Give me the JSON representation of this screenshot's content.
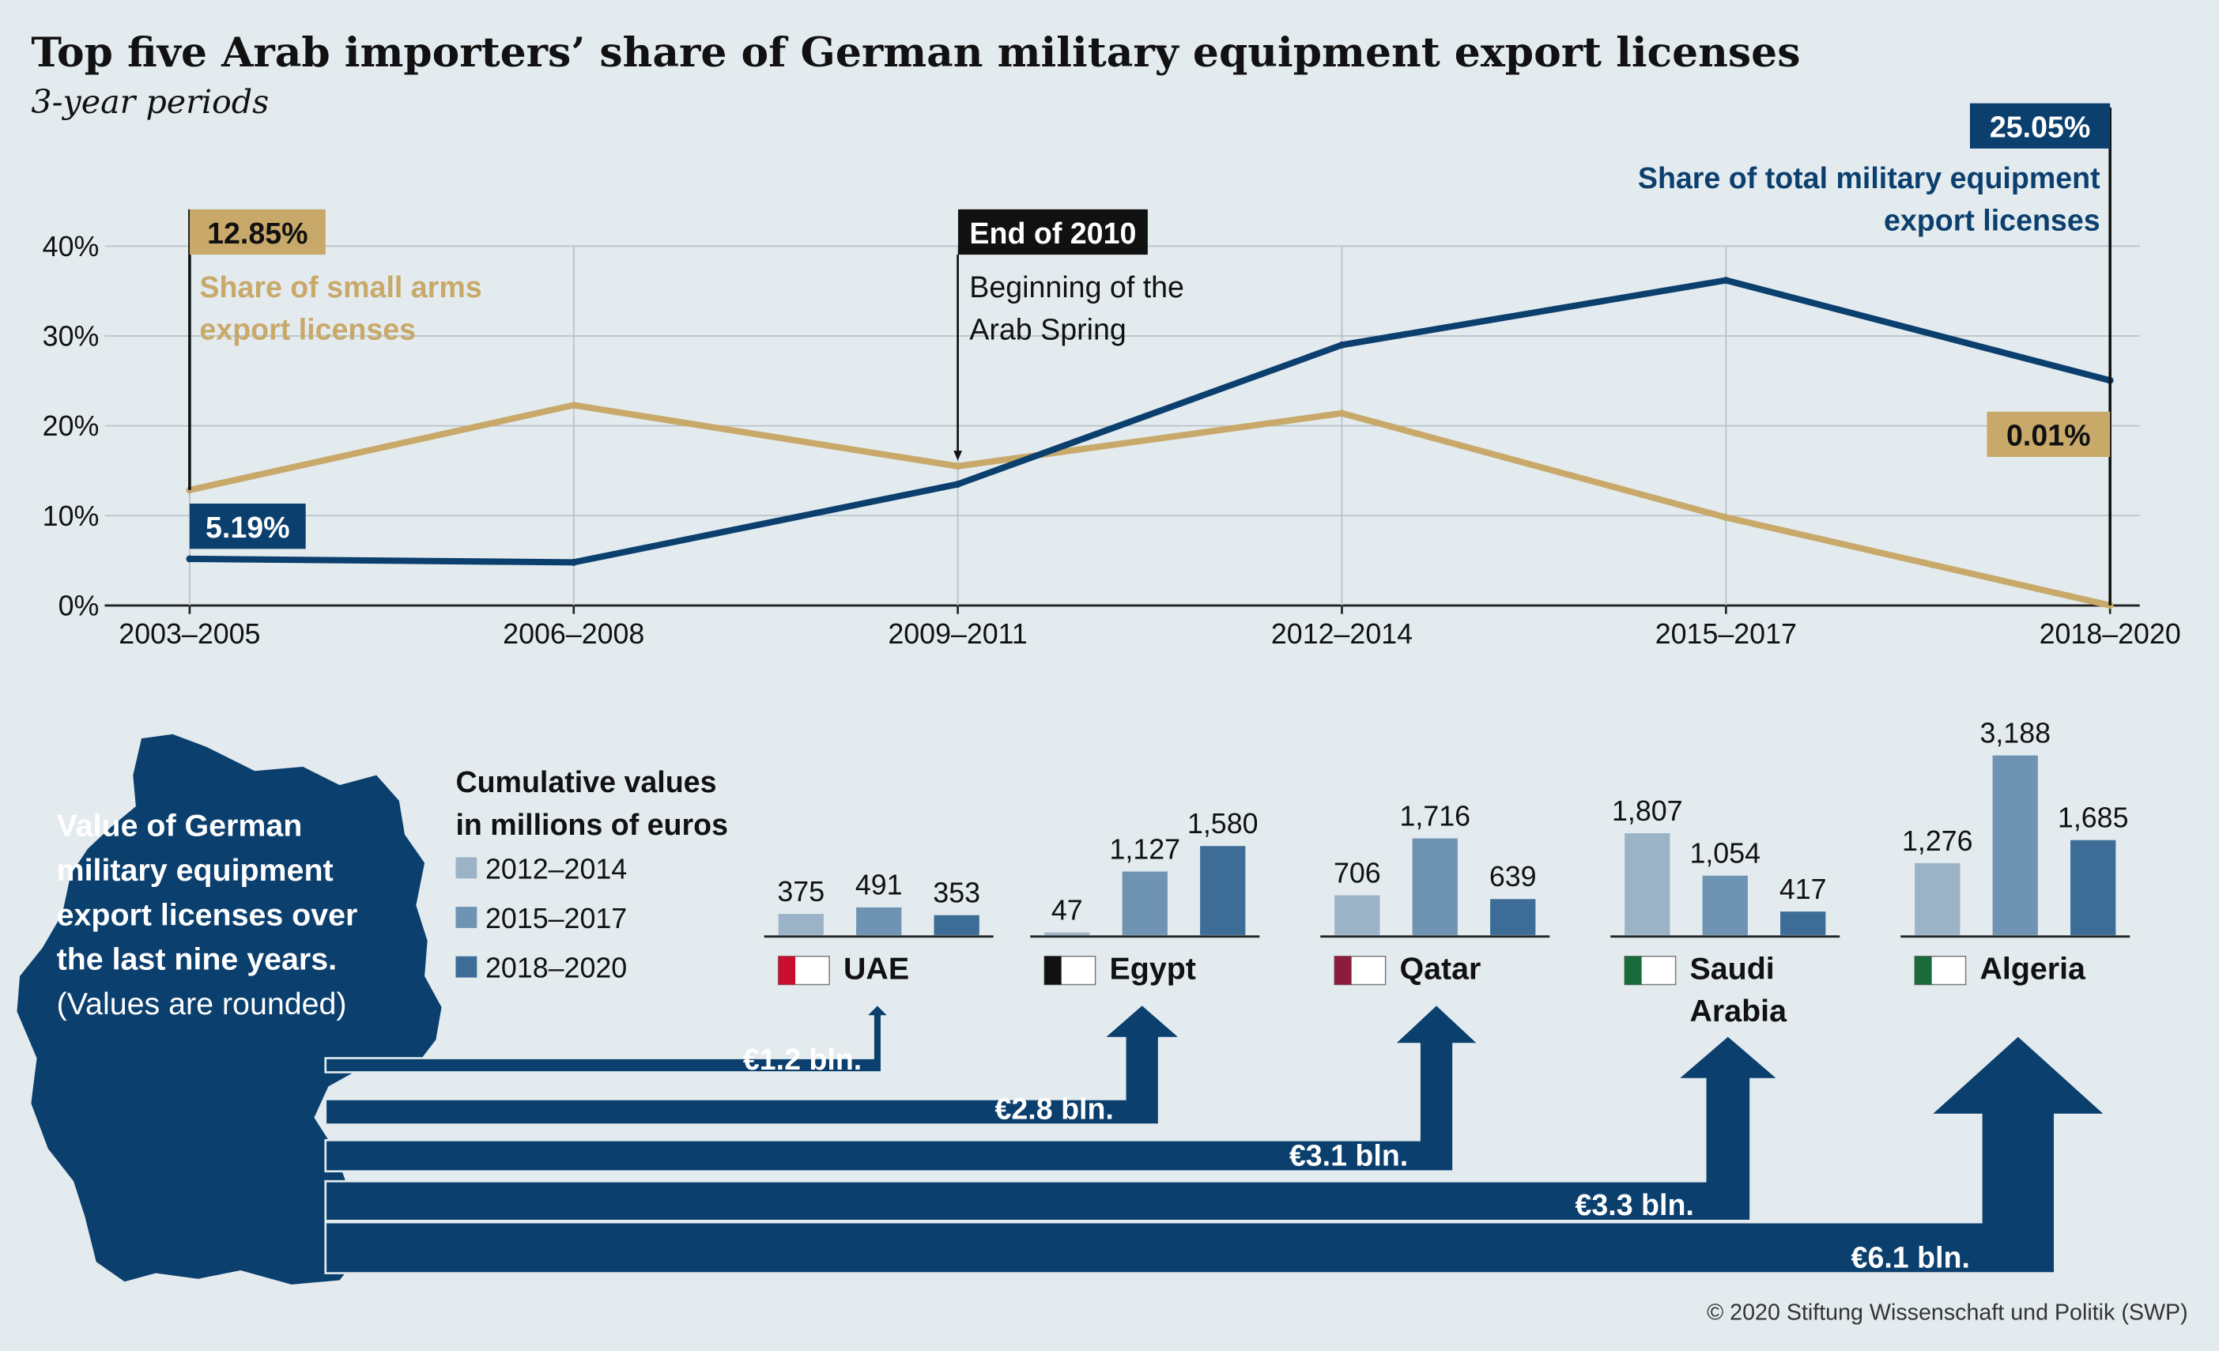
{
  "title": "Top five Arab importers’ share of German military equipment export licenses",
  "subtitle": "3-year periods",
  "colors": {
    "background": "#e3ebef",
    "navy": "#0b3f6e",
    "gold": "#c8a96a",
    "c2012": "#9cb3c7",
    "c2015": "#6f93b2",
    "c2018": "#3d6d96"
  },
  "chart_data": [
    {
      "type": "line",
      "categories": [
        "2003–2005",
        "2006–2008",
        "2009–2011",
        "2012–2014",
        "2015–2017",
        "2018–2020"
      ],
      "ylim": [
        0,
        40
      ],
      "yticks": [
        "0%",
        "10%",
        "20%",
        "30%",
        "40%"
      ],
      "grid": true,
      "series": [
        {
          "name": "Share of total military equipment export licenses",
          "values": [
            5.19,
            4.8,
            13.5,
            29.0,
            36.2,
            25.05
          ]
        },
        {
          "name": "Share of small arms export licenses",
          "values": [
            12.85,
            22.3,
            15.5,
            21.4,
            9.8,
            0.01
          ]
        }
      ],
      "annotations": {
        "total_start": "5.19%",
        "total_end": "25.05%",
        "total_label": "Share of total military equipment export licenses",
        "small_start": "12.85%",
        "small_end": "0.01%",
        "small_label": "Share of small arms export licenses",
        "event_tag": "End of 2010",
        "event_text": "Beginning of the Arab Spring"
      }
    },
    {
      "type": "bar",
      "title": "Value of German military equipment export licenses over the last nine years.",
      "note": "(Values are rounded)",
      "legend_title": "Cumulative values in millions of euros",
      "periods": [
        "2012–2014",
        "2015–2017",
        "2018–2020"
      ],
      "countries": [
        {
          "name": "UAE",
          "values": [
            375,
            491,
            353
          ],
          "labels": [
            "375",
            "491",
            "353"
          ],
          "total": "€1.2 bln."
        },
        {
          "name": "Egypt",
          "values": [
            47,
            1127,
            1580
          ],
          "labels": [
            "47",
            "1,127",
            "1,580"
          ],
          "total": "€2.8 bln."
        },
        {
          "name": "Qatar",
          "values": [
            706,
            1716,
            639
          ],
          "labels": [
            "706",
            "1,716",
            "639"
          ],
          "total": "€3.1 bln."
        },
        {
          "name": "Saudi Arabia",
          "values": [
            1807,
            1054,
            417
          ],
          "labels": [
            "1,807",
            "1,054",
            "417"
          ],
          "total": "€3.3 bln."
        },
        {
          "name": "Algeria",
          "values": [
            1276,
            3188,
            1685
          ],
          "labels": [
            "1,276",
            "3,188",
            "1,685"
          ],
          "total": "€6.1 bln."
        }
      ]
    }
  ],
  "credit": "© 2020 Stiftung Wissenschaft und Politik (SWP)"
}
